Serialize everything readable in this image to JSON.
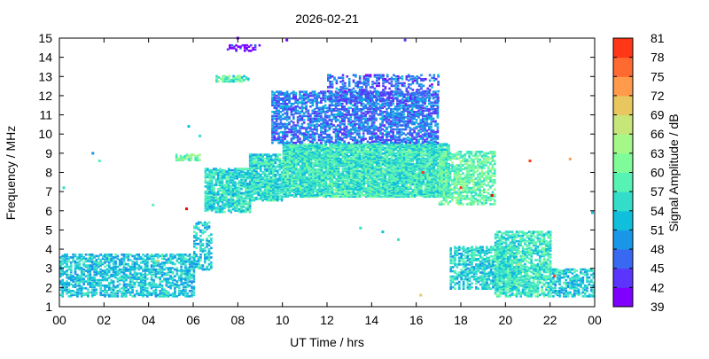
{
  "chart_data": {
    "type": "scatter",
    "title": "2026-02-21",
    "xlabel": "UT Time / hrs",
    "ylabel": "Frequency / MHz",
    "xlim": [
      0,
      24
    ],
    "ylim": [
      1,
      15
    ],
    "xticks": [
      "00",
      "02",
      "04",
      "06",
      "08",
      "10",
      "12",
      "14",
      "16",
      "18",
      "20",
      "22",
      "00"
    ],
    "yticks": [
      "1",
      "2",
      "3",
      "4",
      "5",
      "6",
      "7",
      "8",
      "9",
      "10",
      "11",
      "12",
      "13",
      "14",
      "15"
    ],
    "grid": false,
    "colorbar": {
      "label": "Signal Amplitude / dB",
      "min": 39,
      "max": 81,
      "ticks": [
        "39",
        "42",
        "45",
        "48",
        "51",
        "54",
        "57",
        "60",
        "63",
        "66",
        "69",
        "72",
        "75",
        "78",
        "81"
      ],
      "colors": [
        "#7f00ff",
        "#5b35fb",
        "#3968f3",
        "#1996e8",
        "#10bfdc",
        "#34ddca",
        "#57f3b4",
        "#7ffc99",
        "#a3f887",
        "#c6e67a",
        "#e8c85e",
        "#ff9b4a",
        "#ff6a30",
        "#ff3718",
        "#ff0000"
      ]
    },
    "regions": [
      {
        "x0": 0.0,
        "x1": 6.0,
        "y0": 1.6,
        "y1": 3.8,
        "amp": 51.5,
        "density": 0.55
      },
      {
        "x0": 6.0,
        "x1": 6.8,
        "y0": 3.0,
        "y1": 5.5,
        "amp": 52,
        "density": 0.45
      },
      {
        "x0": 6.5,
        "x1": 8.5,
        "y0": 6.0,
        "y1": 8.3,
        "amp": 54,
        "density": 0.7
      },
      {
        "x0": 8.5,
        "x1": 10.0,
        "y0": 6.6,
        "y1": 9.0,
        "amp": 54,
        "density": 0.75
      },
      {
        "x0": 10.0,
        "x1": 17.5,
        "y0": 6.8,
        "y1": 9.6,
        "amp": 55,
        "density": 0.85
      },
      {
        "x0": 9.5,
        "x1": 17.0,
        "y0": 9.6,
        "y1": 12.3,
        "amp": 46,
        "density": 0.55
      },
      {
        "x0": 12.0,
        "x1": 17.0,
        "y0": 11.8,
        "y1": 13.2,
        "amp": 45,
        "density": 0.35
      },
      {
        "x0": 17.0,
        "x1": 19.5,
        "y0": 6.4,
        "y1": 9.2,
        "amp": 58,
        "density": 0.55
      },
      {
        "x0": 17.5,
        "x1": 20.5,
        "y0": 2.0,
        "y1": 4.2,
        "amp": 53,
        "density": 0.55
      },
      {
        "x0": 19.5,
        "x1": 22.0,
        "y0": 1.6,
        "y1": 5.0,
        "amp": 55,
        "density": 0.6
      },
      {
        "x0": 22.0,
        "x1": 24.0,
        "y0": 1.6,
        "y1": 3.0,
        "amp": 52,
        "density": 0.55
      },
      {
        "x0": 7.0,
        "x1": 8.5,
        "y0": 12.8,
        "y1": 13.1,
        "amp": 57,
        "density": 0.6
      },
      {
        "x0": 7.5,
        "x1": 9.0,
        "y0": 14.4,
        "y1": 14.7,
        "amp": 41,
        "density": 0.4
      },
      {
        "x0": 5.2,
        "x1": 6.3,
        "y0": 8.7,
        "y1": 9.0,
        "amp": 59,
        "density": 0.7
      }
    ],
    "points": [
      {
        "x": 5.7,
        "y": 6.1,
        "amp": 80
      },
      {
        "x": 16.3,
        "y": 8.0,
        "amp": 79
      },
      {
        "x": 18.0,
        "y": 7.2,
        "amp": 78
      },
      {
        "x": 19.4,
        "y": 6.8,
        "amp": 80
      },
      {
        "x": 21.1,
        "y": 8.6,
        "amp": 79
      },
      {
        "x": 22.9,
        "y": 8.7,
        "amp": 72
      },
      {
        "x": 22.2,
        "y": 2.6,
        "amp": 78
      },
      {
        "x": 20.6,
        "y": 3.2,
        "amp": 67
      },
      {
        "x": 4.4,
        "y": 3.4,
        "amp": 66
      },
      {
        "x": 16.2,
        "y": 1.6,
        "amp": 68
      },
      {
        "x": 0.2,
        "y": 7.2,
        "amp": 53
      },
      {
        "x": 1.5,
        "y": 9.0,
        "amp": 49
      },
      {
        "x": 1.8,
        "y": 8.6,
        "amp": 57
      },
      {
        "x": 4.2,
        "y": 6.3,
        "amp": 57
      },
      {
        "x": 23.9,
        "y": 5.9,
        "amp": 51
      },
      {
        "x": 13.5,
        "y": 5.1,
        "amp": 55
      },
      {
        "x": 15.2,
        "y": 4.5,
        "amp": 54
      },
      {
        "x": 8.0,
        "y": 15.0,
        "amp": 40
      },
      {
        "x": 10.2,
        "y": 14.9,
        "amp": 40
      },
      {
        "x": 15.5,
        "y": 14.9,
        "amp": 41
      },
      {
        "x": 6.3,
        "y": 9.9,
        "amp": 55
      },
      {
        "x": 5.8,
        "y": 10.4,
        "amp": 52
      },
      {
        "x": 14.5,
        "y": 4.9,
        "amp": 50
      }
    ]
  }
}
